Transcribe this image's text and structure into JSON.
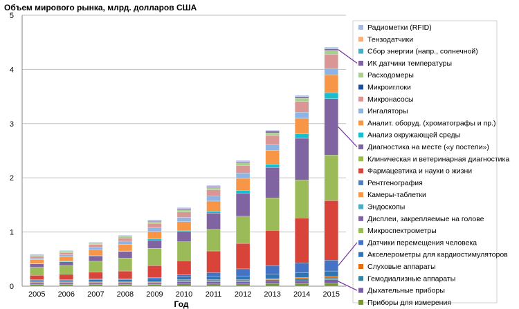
{
  "chart_data": {
    "type": "bar",
    "stacked": true,
    "title": "Объем мирового рынка, млрд. долларов США",
    "xlabel": "Год",
    "ylabel": "",
    "ylim": [
      0,
      5
    ],
    "yticks": [
      "0",
      "1",
      "2",
      "3",
      "4",
      "5"
    ],
    "grid": true,
    "legend_position": "right",
    "categories": [
      "2005",
      "2006",
      "2007",
      "2008",
      "2009",
      "2010",
      "2011",
      "2012",
      "2013",
      "2014",
      "2015"
    ],
    "series": [
      {
        "name": "Приборы для измерения  кровяного давления",
        "color": "#77933c",
        "values": [
          0.03,
          0.03,
          0.03,
          0.03,
          0.03,
          0.04,
          0.04,
          0.04,
          0.05,
          0.05,
          0.06
        ]
      },
      {
        "name": "Дыхательные приборы",
        "color": "#7b5ea7",
        "values": [
          0.03,
          0.03,
          0.03,
          0.03,
          0.03,
          0.04,
          0.04,
          0.04,
          0.05,
          0.05,
          0.06
        ]
      },
      {
        "name": "Гемодиализные аппараты",
        "color": "#31859c",
        "values": [
          0.01,
          0.01,
          0.01,
          0.01,
          0.01,
          0.02,
          0.02,
          0.02,
          0.02,
          0.03,
          0.03
        ]
      },
      {
        "name": "Слуховые аппараты",
        "color": "#e46c0a",
        "values": [
          0.01,
          0.01,
          0.01,
          0.01,
          0.01,
          0.02,
          0.02,
          0.02,
          0.02,
          0.03,
          0.03
        ]
      },
      {
        "name": "Акселерометры для кардиостимуляторов",
        "color": "#2e75b6",
        "values": [
          0.03,
          0.03,
          0.04,
          0.04,
          0.05,
          0.05,
          0.06,
          0.07,
          0.08,
          0.09,
          0.1
        ]
      },
      {
        "name": "Датчики перемещения человека",
        "color": "#4472c4",
        "values": [
          0.01,
          0.01,
          0.02,
          0.02,
          0.03,
          0.04,
          0.07,
          0.13,
          0.16,
          0.18,
          0.2
        ]
      },
      {
        "name": "Микроспектрометры",
        "color": "#9bbb59",
        "values": [
          0.0,
          0.0,
          0.0,
          0.0,
          0.0,
          0.0,
          0.0,
          0.0,
          0.0,
          0.0,
          0.0
        ]
      },
      {
        "name": "Дисплеи, закрепляемые на голове",
        "color": "#8064a2",
        "values": [
          0.0,
          0.0,
          0.0,
          0.0,
          0.0,
          0.0,
          0.0,
          0.0,
          0.0,
          0.0,
          0.0
        ]
      },
      {
        "name": "Эндоскопы",
        "color": "#4bacc6",
        "values": [
          0.0,
          0.0,
          0.0,
          0.0,
          0.0,
          0.0,
          0.0,
          0.0,
          0.0,
          0.0,
          0.0
        ]
      },
      {
        "name": "Камеры-таблетки",
        "color": "#f79646",
        "values": [
          0.0,
          0.0,
          0.0,
          0.0,
          0.0,
          0.0,
          0.0,
          0.0,
          0.0,
          0.0,
          0.0
        ]
      },
      {
        "name": "Рентгенография",
        "color": "#4f81bd",
        "values": [
          0.0,
          0.0,
          0.0,
          0.0,
          0.0,
          0.0,
          0.0,
          0.0,
          0.0,
          0.0,
          0.0
        ]
      },
      {
        "name": "Фармацевтика и науки о жизни",
        "color": "#d9443a",
        "values": [
          0.08,
          0.1,
          0.12,
          0.14,
          0.22,
          0.26,
          0.4,
          0.47,
          0.65,
          0.83,
          1.1
        ]
      },
      {
        "name": "Клиническая и ветеринарная диагностика",
        "color": "#9bbb59",
        "values": [
          0.15,
          0.16,
          0.2,
          0.24,
          0.32,
          0.35,
          0.4,
          0.5,
          0.6,
          0.7,
          0.84
        ]
      },
      {
        "name": "Диагностика на месте («у постели»)",
        "color": "#8064a2",
        "values": [
          0.06,
          0.07,
          0.1,
          0.12,
          0.15,
          0.19,
          0.3,
          0.43,
          0.56,
          0.77,
          1.04
        ]
      },
      {
        "name": "Анализ окружающей среды",
        "color": "#17becf",
        "values": [
          0.01,
          0.01,
          0.01,
          0.01,
          0.02,
          0.02,
          0.03,
          0.05,
          0.06,
          0.08,
          0.11
        ]
      },
      {
        "name": "Аналит. оборуд. (хроматографы и пр.)",
        "color": "#f79646",
        "values": [
          0.07,
          0.08,
          0.1,
          0.12,
          0.14,
          0.16,
          0.19,
          0.22,
          0.26,
          0.29,
          0.33
        ]
      },
      {
        "name": "Ингаляторы",
        "color": "#8eb4e3",
        "values": [
          0.03,
          0.04,
          0.05,
          0.06,
          0.07,
          0.08,
          0.09,
          0.1,
          0.1,
          0.11,
          0.12
        ]
      },
      {
        "name": "Микронасосы",
        "color": "#d99694",
        "values": [
          0.03,
          0.04,
          0.05,
          0.06,
          0.08,
          0.1,
          0.12,
          0.14,
          0.17,
          0.2,
          0.26
        ]
      },
      {
        "name": "Микроиглоки",
        "color": "#1f4e9c",
        "values": [
          0.0,
          0.0,
          0.0,
          0.0,
          0.0,
          0.0,
          0.0,
          0.0,
          0.0,
          0.0,
          0.0
        ]
      },
      {
        "name": "Расходомеры",
        "color": "#a9d18e",
        "values": [
          0.02,
          0.02,
          0.02,
          0.03,
          0.03,
          0.04,
          0.04,
          0.05,
          0.05,
          0.06,
          0.07
        ]
      },
      {
        "name": "ИК датчики температуры",
        "color": "#8064a2",
        "values": [
          0.01,
          0.01,
          0.01,
          0.01,
          0.02,
          0.02,
          0.02,
          0.02,
          0.03,
          0.03,
          0.03
        ]
      },
      {
        "name": "Сбор энергии (напр., солнечной)",
        "color": "#4bacc6",
        "values": [
          0.0,
          0.0,
          0.0,
          0.0,
          0.0,
          0.0,
          0.0,
          0.0,
          0.0,
          0.0,
          0.0
        ]
      },
      {
        "name": "Тензодатчики",
        "color": "#fab07a",
        "values": [
          0.0,
          0.0,
          0.0,
          0.0,
          0.0,
          0.0,
          0.0,
          0.0,
          0.0,
          0.0,
          0.0
        ]
      },
      {
        "name": "Радиометки (RFID)",
        "color": "#a6b9dc",
        "values": [
          0.01,
          0.01,
          0.01,
          0.01,
          0.01,
          0.02,
          0.02,
          0.02,
          0.02,
          0.02,
          0.03
        ]
      }
    ],
    "callouts": [
      {
        "series": "ИК датчики температуры",
        "category": "2015",
        "color": "#7030a0"
      },
      {
        "series": "Диагностика на месте («у постели»)",
        "category": "2015",
        "color": "#7030a0"
      },
      {
        "series": "Дисплеи, закрепляемые на голове",
        "category": "2015",
        "color": "#7030a0"
      },
      {
        "series": "Датчики перемещения человека",
        "category": "2015",
        "color": "#7030a0"
      },
      {
        "series": "Дыхательные приборы",
        "category": "2015",
        "color": "#7030a0"
      }
    ]
  }
}
